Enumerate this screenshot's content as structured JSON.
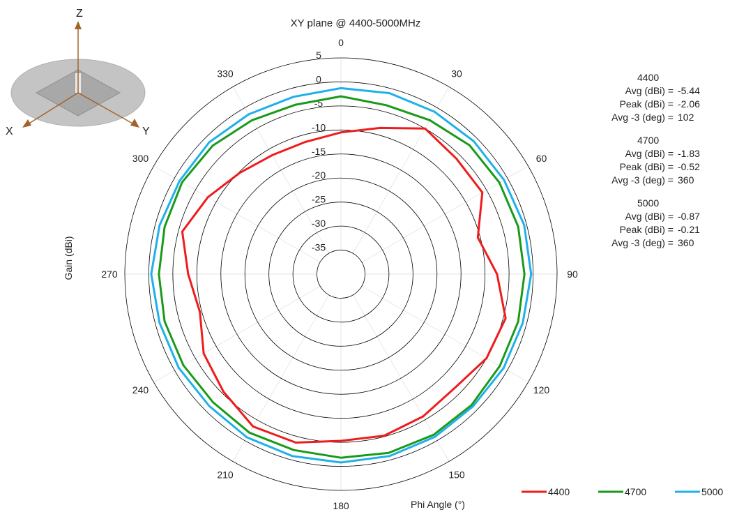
{
  "chart_data": {
    "type": "polar-line",
    "title": "XY plane @ 4400-5000MHz",
    "radial_label": "Gain (dBi)",
    "angular_label": "Phi Angle (°)",
    "r_range": [
      -40,
      5
    ],
    "r_ticks": [
      5,
      0,
      -5,
      -10,
      -15,
      -20,
      -25,
      -30,
      -35
    ],
    "angle_ticks": [
      0,
      30,
      60,
      90,
      120,
      150,
      180,
      210,
      240,
      270,
      300,
      330
    ],
    "angle_step_deg": 15,
    "legend_position": "bottom-right",
    "series": [
      {
        "name": "4400",
        "color": "#ee1c1c",
        "phi": [
          0,
          15,
          30,
          45,
          60,
          75,
          90,
          105,
          120,
          135,
          150,
          165,
          180,
          195,
          210,
          225,
          240,
          255,
          270,
          285,
          300,
          315,
          330,
          345
        ],
        "values": [
          -10.5,
          -8.5,
          -5.0,
          -6.0,
          -6.0,
          -10.5,
          -7.5,
          -4.5,
          -5.0,
          -6.5,
          -5.8,
          -5.2,
          -5.3,
          -3.7,
          -3.4,
          -5.4,
          -7.0,
          -9.6,
          -8.2,
          -5.8,
          -8.0,
          -10.2,
          -11.4,
          -11.5
        ]
      },
      {
        "name": "4700",
        "color": "#1a9a1a",
        "phi": [
          0,
          15,
          30,
          45,
          60,
          75,
          90,
          105,
          120,
          135,
          150,
          165,
          180,
          195,
          210,
          225,
          240,
          255,
          270,
          285,
          300,
          315,
          330,
          345
        ],
        "values": [
          -3.0,
          -3.6,
          -3.0,
          -2.1,
          -1.9,
          -1.8,
          -1.8,
          -1.8,
          -1.8,
          -1.5,
          -1.4,
          -1.5,
          -1.8,
          -2.1,
          -1.9,
          -2.3,
          -2.1,
          -2.0,
          -2.1,
          -2.0,
          -1.8,
          -2.2,
          -3.0,
          -3.5
        ]
      },
      {
        "name": "5000",
        "color": "#1fb0ea",
        "phi": [
          0,
          15,
          30,
          45,
          60,
          75,
          90,
          105,
          120,
          135,
          150,
          165,
          180,
          195,
          210,
          225,
          240,
          255,
          270,
          285,
          300,
          315,
          330,
          345
        ],
        "values": [
          -1.3,
          -1.0,
          -1.0,
          -0.9,
          -0.8,
          -0.5,
          -0.4,
          -0.8,
          -0.9,
          -1.1,
          -0.9,
          -0.8,
          -0.8,
          -0.8,
          -0.8,
          -1.2,
          -1.0,
          -0.9,
          -0.5,
          -0.9,
          -1.2,
          -1.2,
          -1.6,
          -1.8
        ]
      }
    ]
  },
  "stats": [
    {
      "freq": "4400",
      "avg_label": "Avg (dBi) =",
      "avg": "-5.44",
      "peak_label": "Peak (dBi) =",
      "peak": "-2.06",
      "beam_label": "Avg -3 (deg) =",
      "beam": "102"
    },
    {
      "freq": "4700",
      "avg_label": "Avg (dBi) =",
      "avg": "-1.83",
      "peak_label": "Peak (dBi) =",
      "peak": "-0.52",
      "beam_label": "Avg -3 (deg) =",
      "beam": "360"
    },
    {
      "freq": "5000",
      "avg_label": "Avg (dBi) =",
      "avg": "-0.87",
      "peak_label": "Peak (dBi) =",
      "peak": "-0.21",
      "beam_label": "Avg -3 (deg) =",
      "beam": "360"
    }
  ],
  "axes_inset": {
    "z": "Z",
    "x": "X",
    "y": "Y"
  },
  "colors": {
    "axis_arrow": "#a0642a",
    "grid": "#000000",
    "disk": "#c4c4c4"
  }
}
